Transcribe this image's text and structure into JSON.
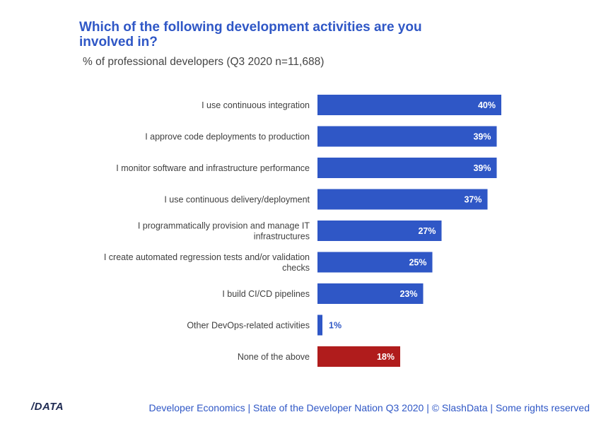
{
  "title": "Which of the following development activities are you involved in?",
  "subtitle": "% of professional developers (Q3 2020 n=11,688)",
  "footer": {
    "logo": "/DATA",
    "text": "Developer Economics | State of the Developer Nation Q3 2020 | © SlashData | Some rights reserved"
  },
  "colors": {
    "primary": "#2f57c6",
    "highlight": "#b01c1c",
    "label": "#404040"
  },
  "chart_data": {
    "type": "bar",
    "orientation": "horizontal",
    "categories": [
      [
        "I use continuous integration"
      ],
      [
        "I approve code deployments to production"
      ],
      [
        "I monitor software and infrastructure performance"
      ],
      [
        "I use continuous delivery/deployment"
      ],
      [
        "I programmatically provision and manage IT",
        "infrastructures"
      ],
      [
        "I create automated regression tests and/or validation",
        "checks"
      ],
      [
        "I build CI/CD pipelines"
      ],
      [
        "Other DevOps-related activities"
      ],
      [
        "None of the above"
      ]
    ],
    "values": [
      40,
      39,
      39,
      37,
      27,
      25,
      23,
      1,
      18
    ],
    "value_labels": [
      "40%",
      "39%",
      "39%",
      "37%",
      "27%",
      "25%",
      "23%",
      "1%",
      "18%"
    ],
    "highlighted": [
      false,
      false,
      false,
      false,
      false,
      false,
      false,
      false,
      true
    ],
    "unit": "%",
    "xlim": [
      0,
      40
    ],
    "grid": false,
    "legend": "none"
  }
}
